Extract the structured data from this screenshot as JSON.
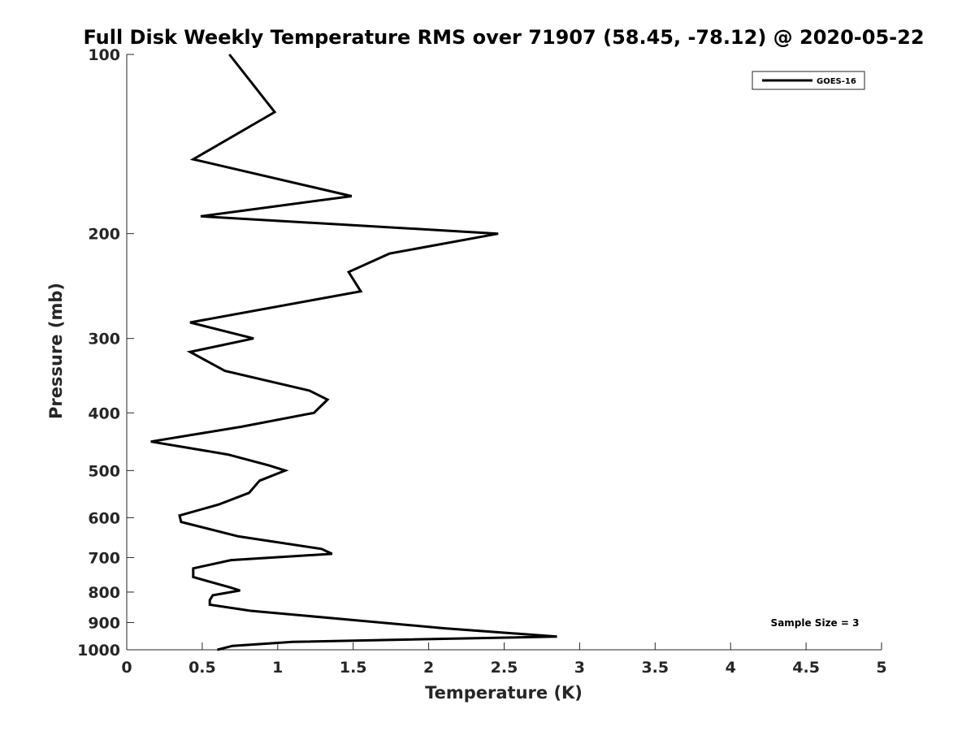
{
  "chart_data": {
    "type": "line",
    "title": "Full Disk Weekly Temperature RMS over 71907 (58.45, -78.12) @ 2020-05-22",
    "xlabel": "Temperature (K)",
    "ylabel": "Pressure (mb)",
    "xlim": [
      0,
      5
    ],
    "ylim": [
      100,
      1000
    ],
    "yscale": "log",
    "y_reversed": true,
    "x_ticks": [
      "0",
      "0.5",
      "1",
      "1.5",
      "2",
      "2.5",
      "3",
      "3.5",
      "4",
      "4.5",
      "5"
    ],
    "y_ticks": [
      "100",
      "200",
      "300",
      "400",
      "500",
      "600",
      "700",
      "800",
      "900",
      "1000"
    ],
    "grid": false,
    "legend_position": "top-right",
    "series": [
      {
        "name": "GOES-16",
        "color": "#000000",
        "points": [
          [
            0.68,
            100
          ],
          [
            0.98,
            125
          ],
          [
            0.44,
            150
          ],
          [
            1.49,
            173
          ],
          [
            0.49,
            187
          ],
          [
            2.46,
            200
          ],
          [
            1.74,
            216
          ],
          [
            1.47,
            232
          ],
          [
            1.55,
            250
          ],
          [
            0.42,
            282
          ],
          [
            0.84,
            300
          ],
          [
            0.42,
            316
          ],
          [
            0.65,
            340
          ],
          [
            1.21,
            367
          ],
          [
            1.33,
            380
          ],
          [
            1.24,
            400
          ],
          [
            0.76,
            422
          ],
          [
            0.16,
            447
          ],
          [
            0.67,
            470
          ],
          [
            0.94,
            490
          ],
          [
            1.05,
            500
          ],
          [
            0.88,
            520
          ],
          [
            0.81,
            545
          ],
          [
            0.61,
            570
          ],
          [
            0.35,
            595
          ],
          [
            0.36,
            610
          ],
          [
            0.74,
            645
          ],
          [
            1.29,
            677
          ],
          [
            1.36,
            690
          ],
          [
            0.69,
            707
          ],
          [
            0.44,
            730
          ],
          [
            0.44,
            755
          ],
          [
            0.68,
            785
          ],
          [
            0.75,
            795
          ],
          [
            0.57,
            810
          ],
          [
            0.55,
            825
          ],
          [
            0.55,
            840
          ],
          [
            0.82,
            860
          ],
          [
            2.1,
            920
          ],
          [
            2.85,
            950
          ],
          [
            1.1,
            970
          ],
          [
            0.7,
            985
          ],
          [
            0.6,
            1000
          ]
        ]
      }
    ],
    "annotation": "Sample Size = 3"
  }
}
